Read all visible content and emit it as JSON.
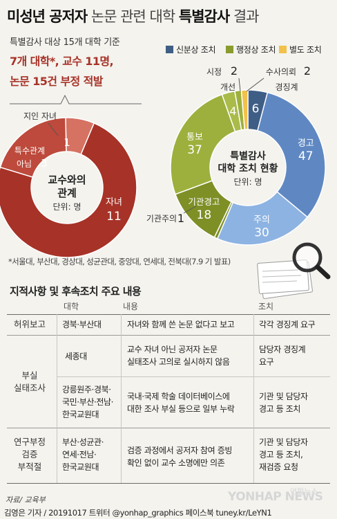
{
  "title": {
    "part1": "미성년 공저자",
    "part2": "논문 관련 대학",
    "part3": "특별감사",
    "part4": "결과"
  },
  "summary": {
    "line1": "특별감사 대상 15개 대학 기준",
    "line2": "7개 대학*, 교수 11명,",
    "line3": "논문 15건 부정 적발"
  },
  "colors": {
    "red_dark": "#a73227",
    "red_mid": "#bd4a3c",
    "red_light": "#d67262",
    "blue_dark": "#3f5e86",
    "blue_mid": "#5f88c3",
    "blue_light": "#8db3e2",
    "olive": "#9db03d",
    "olive_dark": "#7e8f26",
    "yellow": "#f2c14a"
  },
  "chart_data": [
    {
      "type": "pie",
      "title": "교수와의 관계",
      "unit": "단위: 명",
      "slices": [
        {
          "label": "자녀",
          "value": 11,
          "color": "#a73227"
        },
        {
          "label": "특수관계 아님",
          "value": 3,
          "color": "#bd4a3c"
        },
        {
          "label": "지인 자녀",
          "value": 1,
          "color": "#d67262"
        }
      ]
    },
    {
      "type": "pie",
      "title": "특별감사 대학 조치 현황",
      "unit": "단위: 명",
      "legend": [
        {
          "label": "신분상 조치",
          "color": "#3f5e86"
        },
        {
          "label": "행정상 조치",
          "color": "#8a9c2e"
        },
        {
          "label": "별도 조치",
          "color": "#f2c14a"
        }
      ],
      "slices": [
        {
          "label": "경징계",
          "value": 6,
          "color": "#3f5e86"
        },
        {
          "label": "경고",
          "value": 47,
          "color": "#5f88c3"
        },
        {
          "label": "주의",
          "value": 30,
          "color": "#8db3e2"
        },
        {
          "label": "기관주의",
          "value": 1,
          "color": "#7e8f26"
        },
        {
          "label": "기관경고",
          "value": 18,
          "color": "#7e8f26"
        },
        {
          "label": "통보",
          "value": 37,
          "color": "#9db03d"
        },
        {
          "label": "개선",
          "value": 4,
          "color": "#aabb4a"
        },
        {
          "label": "시정",
          "value": 2,
          "color": "#9db03d"
        },
        {
          "label": "수사의뢰",
          "value": 2,
          "color": "#f2c14a"
        }
      ]
    }
  ],
  "footnote": "*서울대, 부산대, 경상대, 성균관대, 중앙대, 연세대, 전북대(7.9 기 발표)",
  "table": {
    "title": "지적사항 및 후속조치 주요 내용",
    "headers": {
      "univ": "대학",
      "content": "내용",
      "action": "조치"
    },
    "rows": [
      {
        "category": "허위보고",
        "univ": "경북·부산대",
        "content": "자녀와 함께 쓴 논문 없다고 보고",
        "action": "각각 경징계 요구"
      },
      {
        "category": "부실\n실태조사",
        "univ": "세종대",
        "content": "교수 자녀 아닌 공저자 논문\n실태조사 고의로 실시하지 않음",
        "action": "담당자 경징계\n요구"
      },
      {
        "category": "",
        "univ": "강릉원주·경북·\n국민·부산·전남·\n한국교원대",
        "content": "국내·국제 학술 데이터베이스에\n대한 조사 부실 등으로 일부 누락",
        "action": "기관 및 담당자\n경고 등 조치"
      },
      {
        "category": "연구부정\n검증\n부적절",
        "univ": "부산·성균관·\n연세·전남·\n한국교원대",
        "content": "검증 과정에서 공저자 참여 증빙\n확인 없이 교수 소명에만 의존",
        "action": "기관 및 담당자\n경고 등 조치,\n재검증 요청"
      }
    ]
  },
  "source": "자료/ 교육부",
  "byline": "김영은 기자 / 20191017  트위터 @yonhap_graphics  페이스북 tuney.kr/LeYN1",
  "logo": {
    "text": "YONHAP NEWS",
    "korean": "연합뉴스"
  }
}
